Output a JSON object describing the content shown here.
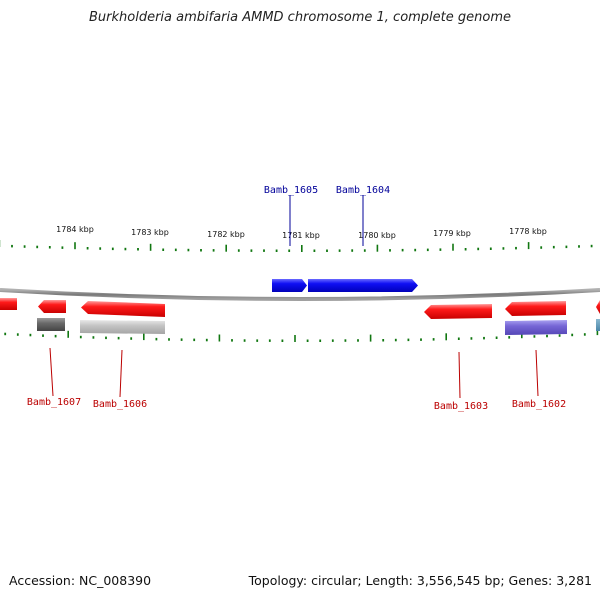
{
  "title": "Burkholderia ambifaria AMMD chromosome 1, complete genome",
  "footer": {
    "accession": "Accession: NC_008390",
    "summary": "Topology: circular; Length: 3,556,545 bp; Genes: 3,281"
  },
  "colors": {
    "forward": "#1111ee",
    "reverse": "#ee1111",
    "label_forward": "#000099",
    "label_reverse": "#bb0000",
    "tick": "#117711",
    "backbone": "#888888"
  },
  "ruler_labels": [
    "1784 kbp",
    "1783 kbp",
    "1782 kbp",
    "1781 kbp",
    "1780 kbp",
    "1779 kbp",
    "1778 kbp"
  ],
  "genes": [
    {
      "name": "Bamb_1605",
      "strand": "forward"
    },
    {
      "name": "Bamb_1604",
      "strand": "forward"
    },
    {
      "name": "Bamb_1607",
      "strand": "reverse"
    },
    {
      "name": "Bamb_1606",
      "strand": "reverse"
    },
    {
      "name": "Bamb_1603",
      "strand": "reverse"
    },
    {
      "name": "Bamb_1602",
      "strand": "reverse"
    }
  ]
}
